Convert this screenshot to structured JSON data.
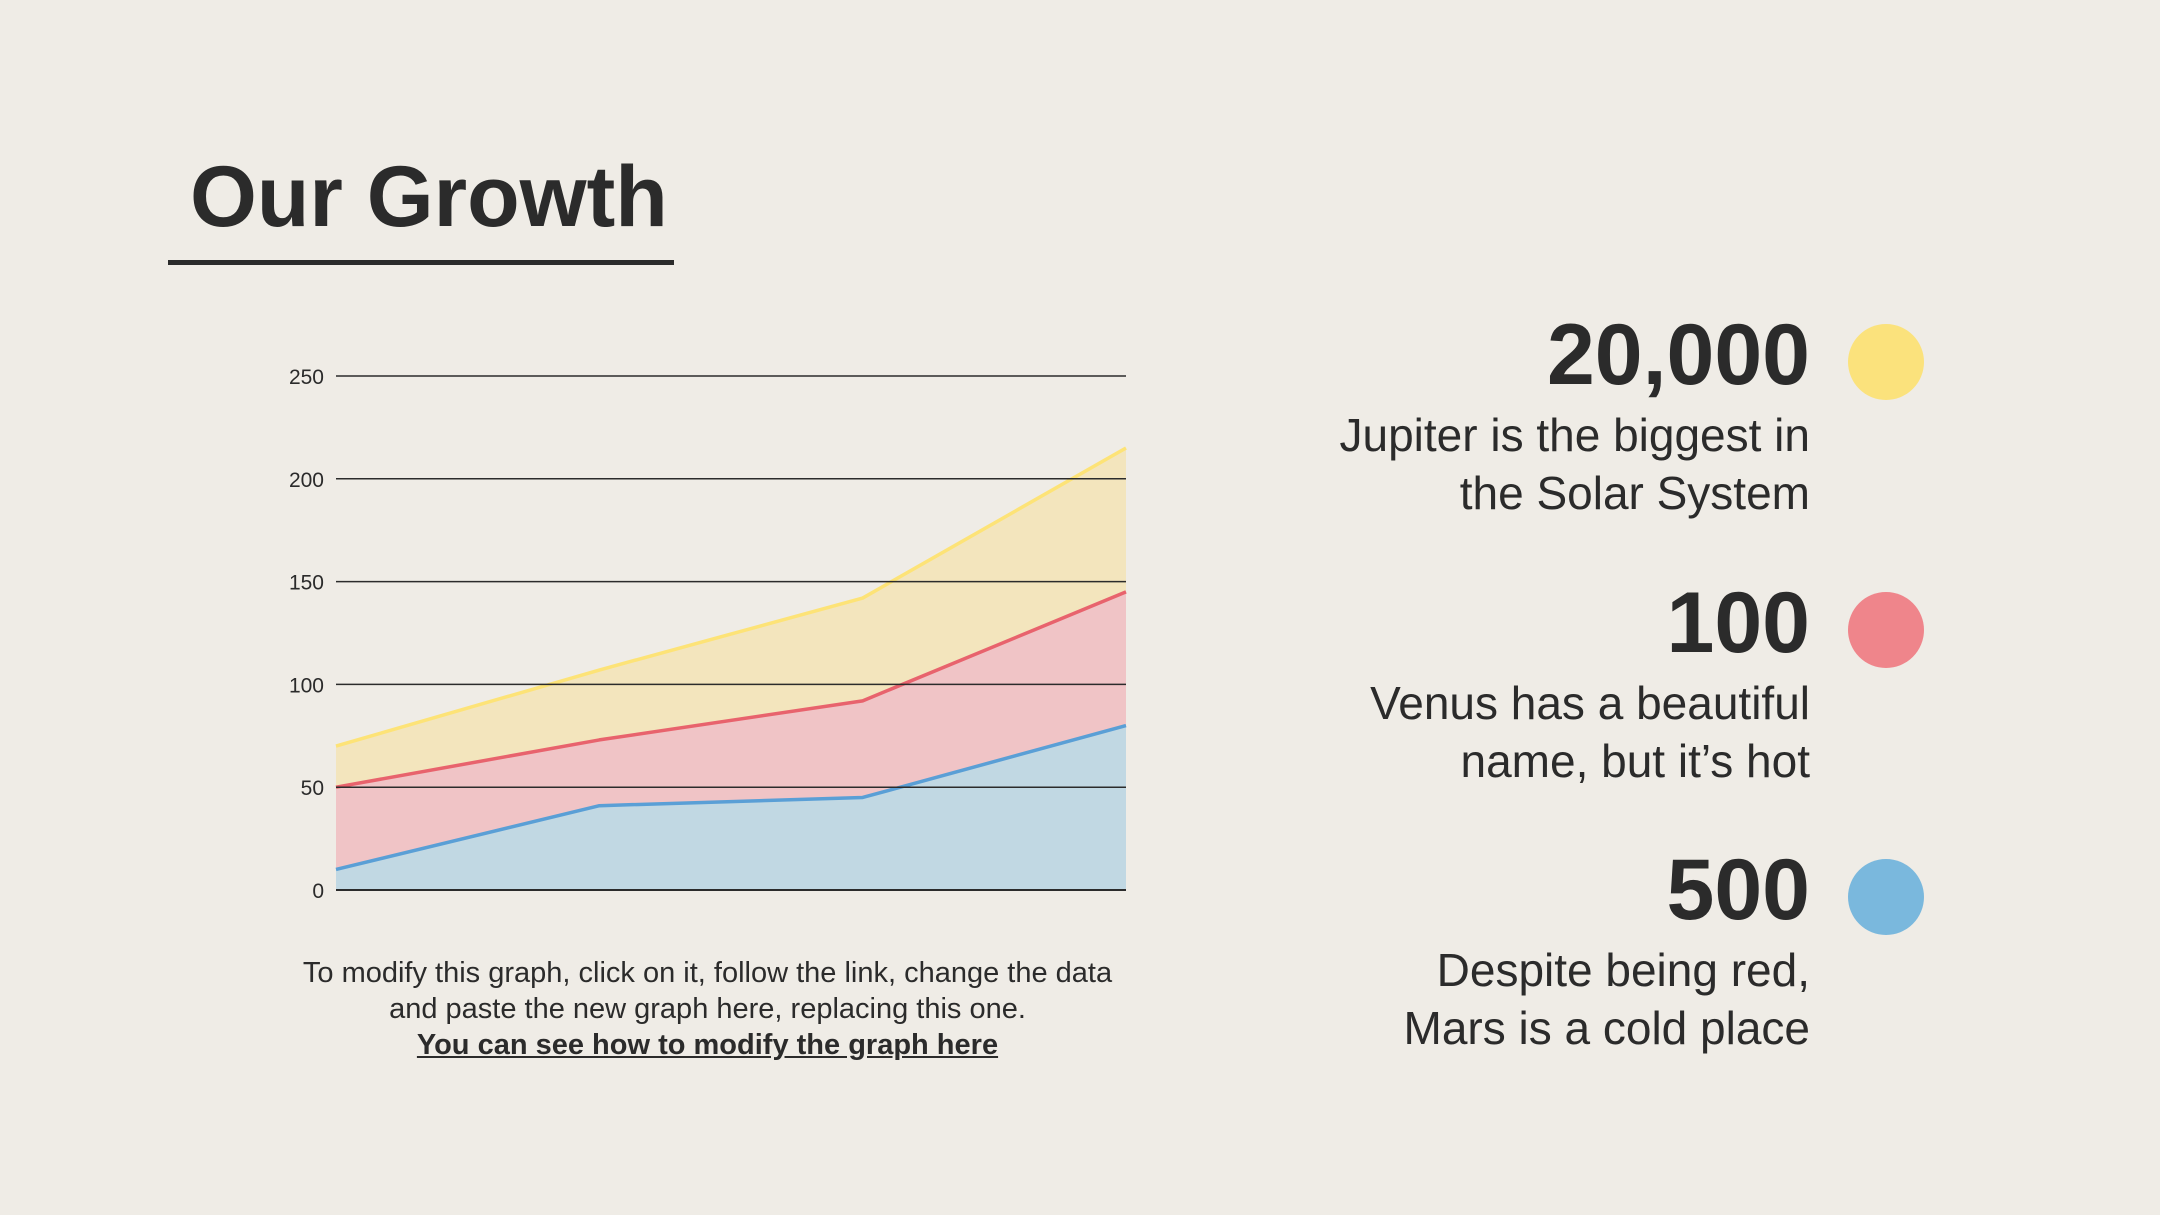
{
  "slide": {
    "title": "Our Growth"
  },
  "chart_data": {
    "type": "area",
    "categories": [
      "",
      "",
      "",
      ""
    ],
    "series": [
      {
        "color": "#5a9fd6",
        "fill": "#c1d8e3",
        "values": [
          10,
          41,
          45,
          80
        ]
      },
      {
        "color": "#e8636d",
        "fill": "#f0c4c6",
        "values": [
          50,
          73,
          92,
          145
        ]
      },
      {
        "color": "#fde377",
        "fill": "#f3e5bd",
        "values": [
          70,
          107,
          142,
          215
        ]
      }
    ],
    "ylim": [
      0,
      250
    ],
    "yticks": [
      0,
      50,
      100,
      150,
      200,
      250
    ],
    "grid": true
  },
  "note": {
    "line1": "To modify this graph, click on it, follow the link, change the data",
    "line2": "and paste the new graph here, replacing this one.",
    "link": "You can see how to modify the graph here"
  },
  "stats": [
    {
      "value": "20,000",
      "line1": "Jupiter is the biggest in",
      "line2": "the Solar System",
      "color": "#fbe27c"
    },
    {
      "value": "100",
      "line1": "Venus has a beautiful",
      "line2": "name, but it’s hot",
      "color": "#ef858b"
    },
    {
      "value": "500",
      "line1": "Despite being red,",
      "line2": "Mars is a cold place",
      "color": "#7ab8dd"
    }
  ]
}
